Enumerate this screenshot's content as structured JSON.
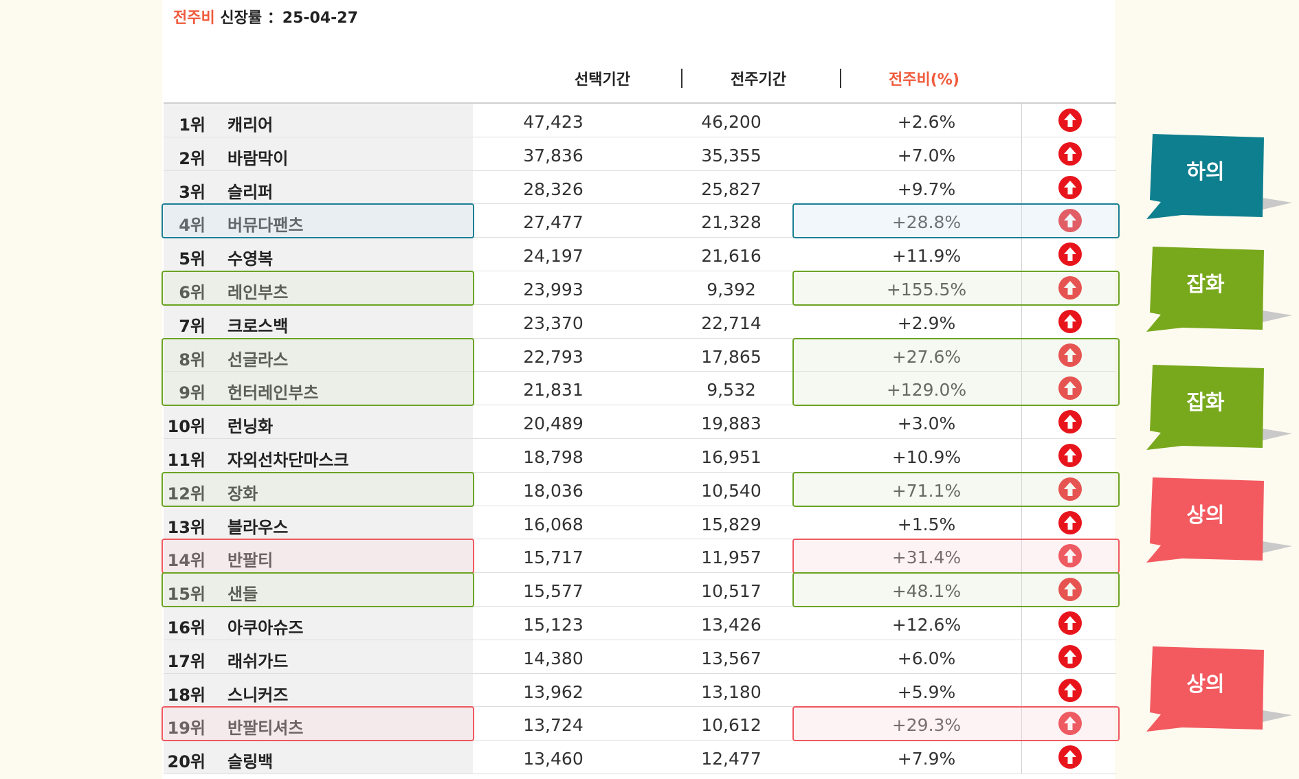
{
  "header": {
    "accent_label": "전주비",
    "rest_label": " 신장률 ：25-04-27"
  },
  "columns": {
    "selected": "선택기간",
    "previous": "전주기간",
    "ratio": "전주비(%)",
    "separator": "|"
  },
  "rows": [
    {
      "rank": "1위",
      "name": "캐리어",
      "selected": "47,423",
      "previous": "46,200",
      "ratio": "+2.6%"
    },
    {
      "rank": "2위",
      "name": "바람막이",
      "selected": "37,836",
      "previous": "35,355",
      "ratio": "+7.0%"
    },
    {
      "rank": "3위",
      "name": "슬리퍼",
      "selected": "28,326",
      "previous": "25,827",
      "ratio": "+9.7%"
    },
    {
      "rank": "4위",
      "name": "버뮤다팬츠",
      "selected": "27,477",
      "previous": "21,328",
      "ratio": "+28.8%"
    },
    {
      "rank": "5위",
      "name": "수영복",
      "selected": "24,197",
      "previous": "21,616",
      "ratio": "+11.9%"
    },
    {
      "rank": "6위",
      "name": "레인부츠",
      "selected": "23,993",
      "previous": "9,392",
      "ratio": "+155.5%"
    },
    {
      "rank": "7위",
      "name": "크로스백",
      "selected": "23,370",
      "previous": "22,714",
      "ratio": "+2.9%"
    },
    {
      "rank": "8위",
      "name": "선글라스",
      "selected": "22,793",
      "previous": "17,865",
      "ratio": "+27.6%"
    },
    {
      "rank": "9위",
      "name": "헌터레인부츠",
      "selected": "21,831",
      "previous": "9,532",
      "ratio": "+129.0%"
    },
    {
      "rank": "10위",
      "name": "런닝화",
      "selected": "20,489",
      "previous": "19,883",
      "ratio": "+3.0%"
    },
    {
      "rank": "11위",
      "name": "자외선차단마스크",
      "selected": "18,798",
      "previous": "16,951",
      "ratio": "+10.9%"
    },
    {
      "rank": "12위",
      "name": "장화",
      "selected": "18,036",
      "previous": "10,540",
      "ratio": "+71.1%"
    },
    {
      "rank": "13위",
      "name": "블라우스",
      "selected": "16,068",
      "previous": "15,829",
      "ratio": "+1.5%"
    },
    {
      "rank": "14위",
      "name": "반팔티",
      "selected": "15,717",
      "previous": "11,957",
      "ratio": "+31.4%"
    },
    {
      "rank": "15위",
      "name": "샌들",
      "selected": "15,577",
      "previous": "10,517",
      "ratio": "+48.1%"
    },
    {
      "rank": "16위",
      "name": "아쿠아슈즈",
      "selected": "15,123",
      "previous": "13,426",
      "ratio": "+12.6%"
    },
    {
      "rank": "17위",
      "name": "래쉬가드",
      "selected": "14,380",
      "previous": "13,567",
      "ratio": "+6.0%"
    },
    {
      "rank": "18위",
      "name": "스니커즈",
      "selected": "13,962",
      "previous": "13,180",
      "ratio": "+5.9%"
    },
    {
      "rank": "19위",
      "name": "반팔티셔츠",
      "selected": "13,724",
      "previous": "10,612",
      "ratio": "+29.3%"
    },
    {
      "rank": "20위",
      "name": "슬링백",
      "selected": "13,460",
      "previous": "12,477",
      "ratio": "+7.9%"
    }
  ],
  "callouts": [
    {
      "label": "하의",
      "color": "#0e7f8e"
    },
    {
      "label": "잡화",
      "color": "#78a81c"
    },
    {
      "label": "잡화",
      "color": "#78a81c"
    },
    {
      "label": "상의",
      "color": "#f25a5f"
    },
    {
      "label": "상의",
      "color": "#f25a5f"
    }
  ],
  "colors": {
    "accent": "#f05a3c",
    "up_icon": "#e8141c",
    "bottoms_highlight": "#1b7f94",
    "goods_highlight": "#6aa323",
    "tops_highlight": "#ef5860"
  },
  "icons": {
    "trend": "up-arrow-circle-icon"
  }
}
